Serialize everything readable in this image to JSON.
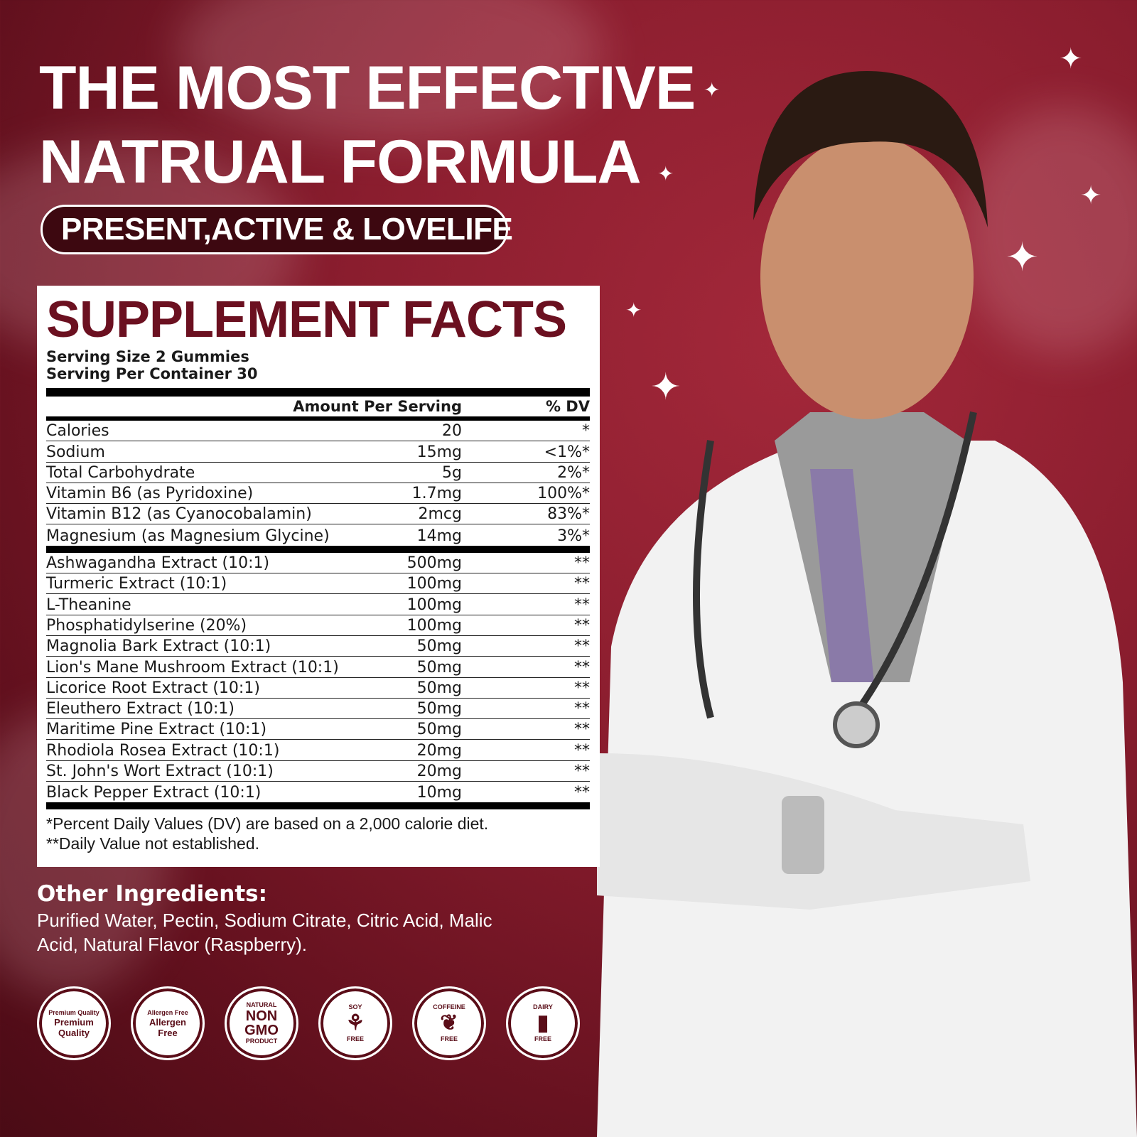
{
  "headline": {
    "line1": "THE MOST EFFECTIVE",
    "line2": "NATRUAL FORMULA"
  },
  "tagline": "PRESENT,ACTIVE & LOVELIFE",
  "facts": {
    "title": "SUPPLEMENT FACTS",
    "serving_size": "Serving Size 2 Gummies",
    "servings_per_container": "Serving Per Container 30",
    "header": {
      "amount": "Amount Per Serving",
      "dv": "% DV"
    },
    "nutrients": [
      {
        "name": "Calories",
        "amount": "20",
        "dv": "*"
      },
      {
        "name": "Sodium",
        "amount": "15mg",
        "dv": "<1%*"
      },
      {
        "name": "Total Carbohydrate",
        "amount": "5g",
        "dv": "2%*"
      },
      {
        "name": "Vitamin B6 (as Pyridoxine)",
        "amount": "1.7mg",
        "dv": "100%*"
      },
      {
        "name": "Vitamin B12 (as Cyanocobalamin)",
        "amount": "2mcg",
        "dv": "83%*"
      },
      {
        "name": "Magnesium (as Magnesium Glycine)",
        "amount": "14mg",
        "dv": "3%*"
      }
    ],
    "extracts": [
      {
        "name": "Ashwagandha Extract (10:1)",
        "amount": "500mg",
        "dv": "**"
      },
      {
        "name": "Turmeric Extract (10:1)",
        "amount": "100mg",
        "dv": "**"
      },
      {
        "name": "L-Theanine",
        "amount": "100mg",
        "dv": "**"
      },
      {
        "name": "Phosphatidylserine (20%)",
        "amount": "100mg",
        "dv": "**"
      },
      {
        "name": "Magnolia Bark Extract (10:1)",
        "amount": "50mg",
        "dv": "**"
      },
      {
        "name": "Lion's Mane Mushroom Extract (10:1)",
        "amount": "50mg",
        "dv": "**"
      },
      {
        "name": "Licorice Root Extract (10:1)",
        "amount": "50mg",
        "dv": "**"
      },
      {
        "name": "Eleuthero Extract (10:1)",
        "amount": "50mg",
        "dv": "**"
      },
      {
        "name": "Maritime Pine Extract (10:1)",
        "amount": "50mg",
        "dv": "**"
      },
      {
        "name": "Rhodiola Rosea Extract (10:1)",
        "amount": "20mg",
        "dv": "**"
      },
      {
        "name": "St. John's Wort Extract (10:1)",
        "amount": "20mg",
        "dv": "**"
      },
      {
        "name": "Black Pepper Extract (10:1)",
        "amount": "10mg",
        "dv": "**"
      }
    ],
    "footnote1": "*Percent Daily Values (DV) are based on a 2,000 calorie diet.",
    "footnote2": "**Daily Value not established."
  },
  "other_ingredients": {
    "title": "Other Ingredients:",
    "text": "Purified Water, Pectin, Sodium Citrate, Citric Acid, Malic Acid, Natural Flavor (Raspberry)."
  },
  "badges": [
    {
      "ring": "Premium Quality",
      "center": "Premium Quality"
    },
    {
      "ring": "Allergen Free",
      "center": "Allergen Free"
    },
    {
      "top": "NATURAL",
      "center": "NON GMO",
      "bottom": "PRODUCT"
    },
    {
      "top": "SOY",
      "bottom": "FREE",
      "icon": "soybean-icon"
    },
    {
      "top": "COFFEINE",
      "bottom": "FREE",
      "icon": "coffee-bean-icon"
    },
    {
      "top": "DAIRY",
      "bottom": "FREE",
      "icon": "milk-bottle-icon"
    }
  ],
  "colors": {
    "background": "#8a1d2e",
    "title": "#6b1020",
    "pill": "#3d0810"
  }
}
